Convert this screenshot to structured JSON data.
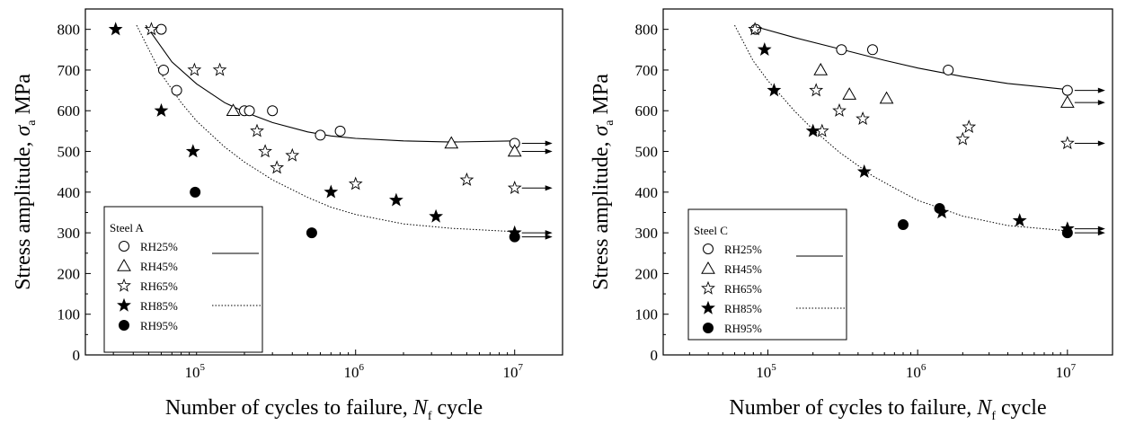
{
  "chart_data": [
    {
      "type": "scatter",
      "xscale": "log",
      "xlim": [
        20000,
        20000000
      ],
      "ylim": [
        0,
        850
      ],
      "xticks": [
        {
          "value": 100000,
          "base": "10",
          "exp": "5"
        },
        {
          "value": 1000000,
          "base": "10",
          "exp": "6"
        },
        {
          "value": 10000000,
          "base": "10",
          "exp": "7"
        }
      ],
      "yticks": [
        0,
        100,
        200,
        300,
        400,
        500,
        600,
        700,
        800
      ],
      "xlabel": {
        "main": "Number of cycles to failure, ",
        "sym": "N",
        "sub": "f",
        "tail": " cycle"
      },
      "ylabel": {
        "main": "Stress amplitude, ",
        "sym": "σ",
        "sub": "a",
        "tail": " MPa"
      },
      "legend": {
        "title": "Steel A",
        "placement": "bottom-left",
        "entries": [
          "RH25%",
          "RH45%",
          "RH65%",
          "RH85%",
          "RH95%"
        ],
        "line_keys": [
          "solid",
          "dotted"
        ]
      },
      "series": [
        {
          "name": "RH25%",
          "marker": "open-circle",
          "points": [
            [
              60000,
              800
            ],
            [
              62000,
              700
            ],
            [
              75000,
              650
            ],
            [
              200000,
              600
            ],
            [
              215000,
              600
            ],
            [
              300000,
              600
            ],
            [
              600000,
              540
            ],
            [
              800000,
              550
            ],
            [
              10000000,
              520
            ]
          ]
        },
        {
          "name": "RH45%",
          "marker": "open-triangle",
          "points": [
            [
              170000,
              600
            ],
            [
              4000000,
              520
            ],
            [
              10000000,
              500
            ]
          ]
        },
        {
          "name": "RH65%",
          "marker": "open-star",
          "points": [
            [
              52000,
              800
            ],
            [
              97000,
              700
            ],
            [
              140000,
              700
            ],
            [
              240000,
              550
            ],
            [
              270000,
              500
            ],
            [
              320000,
              460
            ],
            [
              400000,
              490
            ],
            [
              1000000,
              420
            ],
            [
              5000000,
              430
            ],
            [
              10000000,
              410
            ]
          ]
        },
        {
          "name": "RH85%",
          "marker": "filled-star",
          "points": [
            [
              31000,
              800
            ],
            [
              60000,
              600
            ],
            [
              95000,
              500
            ],
            [
              700000,
              400
            ],
            [
              1800000,
              380
            ],
            [
              3200000,
              340
            ],
            [
              10000000,
              300
            ]
          ]
        },
        {
          "name": "RH95%",
          "marker": "filled-circle",
          "points": [
            [
              98000,
              400
            ],
            [
              530000,
              300
            ],
            [
              10000000,
              290
            ]
          ]
        }
      ],
      "runouts": [
        520,
        500,
        410,
        300,
        290
      ],
      "fits": [
        {
          "style": "solid",
          "points": [
            [
              48000,
              810
            ],
            [
              70000,
              720
            ],
            [
              100000,
              666
            ],
            [
              150000,
              620
            ],
            [
              200000,
              597
            ],
            [
              300000,
              571
            ],
            [
              500000,
              548
            ],
            [
              700000,
              538
            ],
            [
              1000000,
              532
            ],
            [
              2000000,
              526
            ],
            [
              4000000,
              523
            ],
            [
              10000000,
              526
            ]
          ]
        },
        {
          "style": "dotted",
          "points": [
            [
              42000,
              810
            ],
            [
              60000,
              690
            ],
            [
              80000,
              620
            ],
            [
              100000,
              575
            ],
            [
              150000,
              511
            ],
            [
              200000,
              474
            ],
            [
              300000,
              430
            ],
            [
              500000,
              387
            ],
            [
              700000,
              363
            ],
            [
              1000000,
              345
            ],
            [
              2000000,
              322
            ],
            [
              4000000,
              311
            ],
            [
              10000000,
              303
            ]
          ]
        }
      ]
    },
    {
      "type": "scatter",
      "xscale": "log",
      "xlim": [
        20000,
        20000000
      ],
      "ylim": [
        0,
        850
      ],
      "xticks": [
        {
          "value": 100000,
          "base": "10",
          "exp": "5"
        },
        {
          "value": 1000000,
          "base": "10",
          "exp": "6"
        },
        {
          "value": 10000000,
          "base": "10",
          "exp": "7"
        }
      ],
      "yticks": [
        0,
        100,
        200,
        300,
        400,
        500,
        600,
        700,
        800
      ],
      "xlabel": {
        "main": "Number of cycles to failure, ",
        "sym": "N",
        "sub": "f",
        "tail": " cycle"
      },
      "ylabel": {
        "main": "Stress amplitude, ",
        "sym": "σ",
        "sub": "a",
        "tail": " MPa"
      },
      "legend": {
        "title": "Steel C",
        "placement": "bottom-left",
        "entries": [
          "RH25%",
          "RH45%",
          "RH65%",
          "RH85%",
          "RH95%"
        ],
        "line_keys": [
          "solid",
          "dotted"
        ]
      },
      "series": [
        {
          "name": "RH25%",
          "marker": "open-circle",
          "points": [
            [
              83000,
              800
            ],
            [
              310000,
              750
            ],
            [
              500000,
              750
            ],
            [
              1600000,
              700
            ],
            [
              10000000,
              650
            ]
          ]
        },
        {
          "name": "RH45%",
          "marker": "open-triangle",
          "points": [
            [
              225000,
              700
            ],
            [
              350000,
              640
            ],
            [
              620000,
              630
            ],
            [
              10000000,
              620
            ]
          ]
        },
        {
          "name": "RH65%",
          "marker": "open-star",
          "points": [
            [
              82000,
              800
            ],
            [
              210000,
              650
            ],
            [
              230000,
              550
            ],
            [
              300000,
              600
            ],
            [
              430000,
              580
            ],
            [
              2000000,
              530
            ],
            [
              2200000,
              560
            ],
            [
              10000000,
              520
            ]
          ]
        },
        {
          "name": "RH85%",
          "marker": "filled-star",
          "points": [
            [
              95000,
              750
            ],
            [
              110000,
              650
            ],
            [
              200000,
              550
            ],
            [
              440000,
              450
            ],
            [
              1450000,
              350
            ],
            [
              4800000,
              330
            ],
            [
              10000000,
              310
            ]
          ]
        },
        {
          "name": "RH95%",
          "marker": "filled-circle",
          "points": [
            [
              800000,
              320
            ],
            [
              1400000,
              360
            ],
            [
              10000000,
              300
            ]
          ]
        }
      ],
      "runouts": [
        650,
        620,
        520,
        310,
        300
      ],
      "fits": [
        {
          "style": "solid",
          "points": [
            [
              80000,
              808
            ],
            [
              150000,
              780
            ],
            [
              300000,
              752
            ],
            [
              600000,
              724
            ],
            [
              1000000,
              705
            ],
            [
              2000000,
              684
            ],
            [
              4000000,
              667
            ],
            [
              10000000,
              652
            ]
          ]
        },
        {
          "style": "dotted",
          "points": [
            [
              60000,
              810
            ],
            [
              80000,
              722
            ],
            [
              100000,
              674
            ],
            [
              150000,
              600
            ],
            [
              200000,
              554
            ],
            [
              300000,
              498
            ],
            [
              500000,
              440
            ],
            [
              700000,
              410
            ],
            [
              1000000,
              380
            ],
            [
              2000000,
              341
            ],
            [
              4000000,
              318
            ],
            [
              10000000,
              305
            ]
          ]
        }
      ]
    }
  ]
}
